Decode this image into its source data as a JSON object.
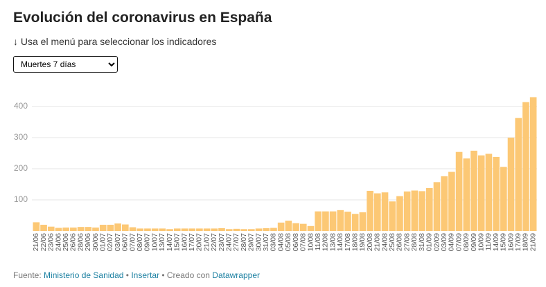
{
  "chart_data": {
    "type": "bar",
    "title": "Evolución del coronavirus en España",
    "subtitle": "↓ Usa el menú para seleccionar los indicadores",
    "selector": "Muertes 7 días",
    "categories": [
      "21/06",
      "22/06",
      "23/06",
      "24/06",
      "25/06",
      "26/06",
      "28/06",
      "29/06",
      "30/06",
      "01/07",
      "02/07",
      "03/07",
      "06/07",
      "07/07",
      "08/07",
      "09/07",
      "10/07",
      "13/07",
      "14/07",
      "15/07",
      "16/07",
      "17/07",
      "20/07",
      "21/07",
      "22/07",
      "23/07",
      "24/07",
      "27/07",
      "28/07",
      "29/07",
      "30/07",
      "31/07",
      "03/08",
      "04/08",
      "05/08",
      "06/08",
      "07/08",
      "10/08",
      "11/08",
      "12/08",
      "13/08",
      "14/08",
      "17/08",
      "18/08",
      "19/08",
      "20/08",
      "21/08",
      "24/08",
      "25/08",
      "26/08",
      "27/08",
      "28/08",
      "31/08",
      "01/09",
      "02/09",
      "03/09",
      "04/09",
      "07/09",
      "08/09",
      "09/09",
      "10/09",
      "11/09",
      "14/09",
      "15/09",
      "16/09",
      "17/09",
      "18/09",
      "21/09"
    ],
    "values": [
      28,
      20,
      14,
      10,
      11,
      11,
      13,
      13,
      11,
      20,
      20,
      24,
      21,
      12,
      8,
      8,
      8,
      8,
      6,
      8,
      8,
      8,
      8,
      8,
      8,
      9,
      6,
      7,
      6,
      6,
      8,
      9,
      10,
      27,
      33,
      25,
      23,
      16,
      63,
      63,
      63,
      67,
      62,
      55,
      60,
      129,
      121,
      124,
      95,
      112,
      127,
      130,
      128,
      138,
      157,
      176,
      190,
      254,
      233,
      258,
      243,
      248,
      238,
      206,
      300,
      363,
      414,
      430
    ],
    "color": "#fcc875",
    "ylim": [
      0,
      450
    ],
    "yticks": [
      100,
      200,
      300,
      400
    ],
    "grid": true,
    "footer": {
      "source_label": "Fuente:",
      "source": "Ministerio de Sanidad",
      "embed": "Insertar",
      "made_with": "Creado con",
      "tool": "Datawrapper"
    }
  }
}
